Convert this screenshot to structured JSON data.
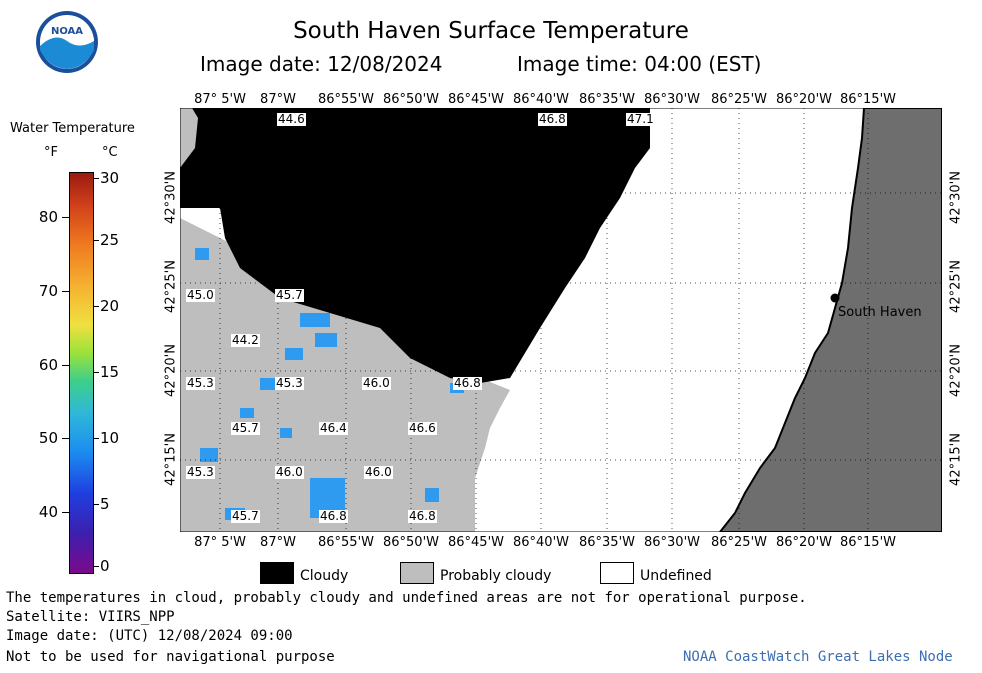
{
  "header": {
    "title": "South Haven Surface Temperature",
    "image_date": "Image date: 12/08/2024",
    "image_time": "Image time: 04:00 (EST)"
  },
  "logo": {
    "text": "NOAA"
  },
  "colorbar": {
    "title": "Water Temperature",
    "unit_f": "°F",
    "unit_c": "°C",
    "f_ticks": [
      "80",
      "70",
      "60",
      "50",
      "40"
    ],
    "c_ticks": [
      "30",
      "25",
      "20",
      "15",
      "10",
      "5",
      "0"
    ]
  },
  "map": {
    "lon_labels": [
      "87° 5'W",
      "87°W",
      "86°55'W",
      "86°50'W",
      "86°45'W",
      "86°40'W",
      "86°35'W",
      "86°30'W",
      "86°25'W",
      "86°20'W",
      "86°15'W"
    ],
    "lat_labels": [
      "42°30'N",
      "42°25'N",
      "42°20'N",
      "42°15'N"
    ],
    "city": "South Haven",
    "temp_labels": [
      "44.6",
      "46.8",
      "47.1",
      "45.0",
      "45.7",
      "44.2",
      "45.3",
      "45.3",
      "46.0",
      "46.8",
      "45.7",
      "46.4",
      "46.6",
      "45.3",
      "46.0",
      "46.0",
      "45.7",
      "46.8",
      "46.8"
    ]
  },
  "legend": {
    "cloudy": "Cloudy",
    "probably_cloudy": "Probably cloudy",
    "undefined": "Undefined"
  },
  "footer": {
    "line1": "The temperatures in cloud, probably cloudy and undefined areas are not for operational purpose.",
    "line2": "Satellite: VIIRS_NPP",
    "line3": "Image date: (UTC) 12/08/2024  09:00",
    "line4": "Not to be used for navigational purpose",
    "credit": "NOAA CoastWatch Great Lakes Node"
  },
  "colors": {
    "cloudy": "#000000",
    "probably_cloudy": "#bebebe",
    "land": "#6e6e6e",
    "water_blue": "#2f9bf0",
    "credit": "#3d6fb0"
  }
}
